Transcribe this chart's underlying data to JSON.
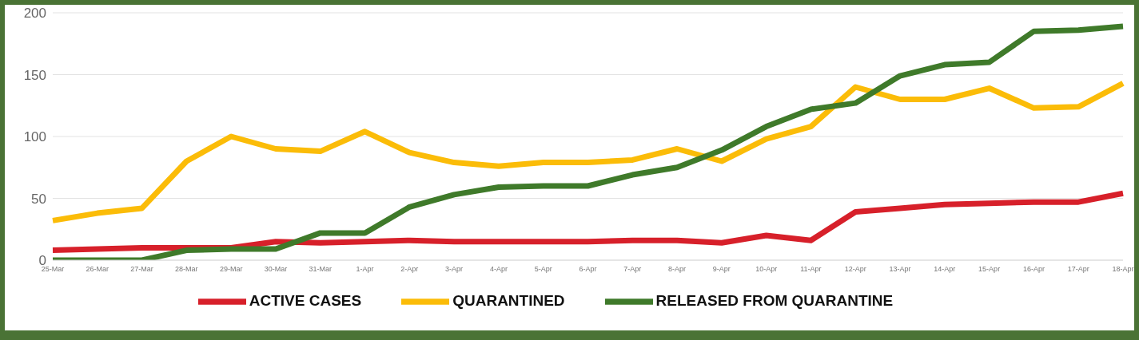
{
  "chart_data": {
    "type": "line",
    "categories": [
      "25-Mar",
      "26-Mar",
      "27-Mar",
      "28-Mar",
      "29-Mar",
      "30-Mar",
      "31-Mar",
      "1-Apr",
      "2-Apr",
      "3-Apr",
      "4-Apr",
      "5-Apr",
      "6-Apr",
      "7-Apr",
      "8-Apr",
      "9-Apr",
      "10-Apr",
      "11-Apr",
      "12-Apr",
      "13-Apr",
      "14-Apr",
      "15-Apr",
      "16-Apr",
      "17-Apr",
      "18-Apr"
    ],
    "series": [
      {
        "name": "ACTIVE CASES",
        "color": "#d7202a",
        "values": [
          8,
          9,
          10,
          10,
          10,
          15,
          14,
          15,
          16,
          15,
          15,
          15,
          15,
          16,
          16,
          14,
          20,
          16,
          39,
          42,
          45,
          46,
          47,
          47,
          54
        ]
      },
      {
        "name": "QUARANTINED",
        "color": "#fbbc08",
        "values": [
          32,
          38,
          42,
          80,
          100,
          90,
          88,
          104,
          87,
          79,
          76,
          79,
          79,
          81,
          90,
          80,
          98,
          108,
          140,
          130,
          130,
          139,
          123,
          124,
          143
        ]
      },
      {
        "name": "RELEASED FROM QUARANTINE",
        "color": "#3f7a2a",
        "values": [
          0,
          0,
          0,
          8,
          9,
          9,
          22,
          22,
          43,
          53,
          59,
          60,
          60,
          69,
          75,
          89,
          108,
          122,
          127,
          149,
          158,
          160,
          185,
          186,
          189
        ]
      }
    ],
    "ylim": [
      0,
      200
    ],
    "yticks": [
      0,
      50,
      100,
      150,
      200
    ],
    "grid": "y",
    "legend": "bottom",
    "marker": "none",
    "line_style": "solid"
  }
}
